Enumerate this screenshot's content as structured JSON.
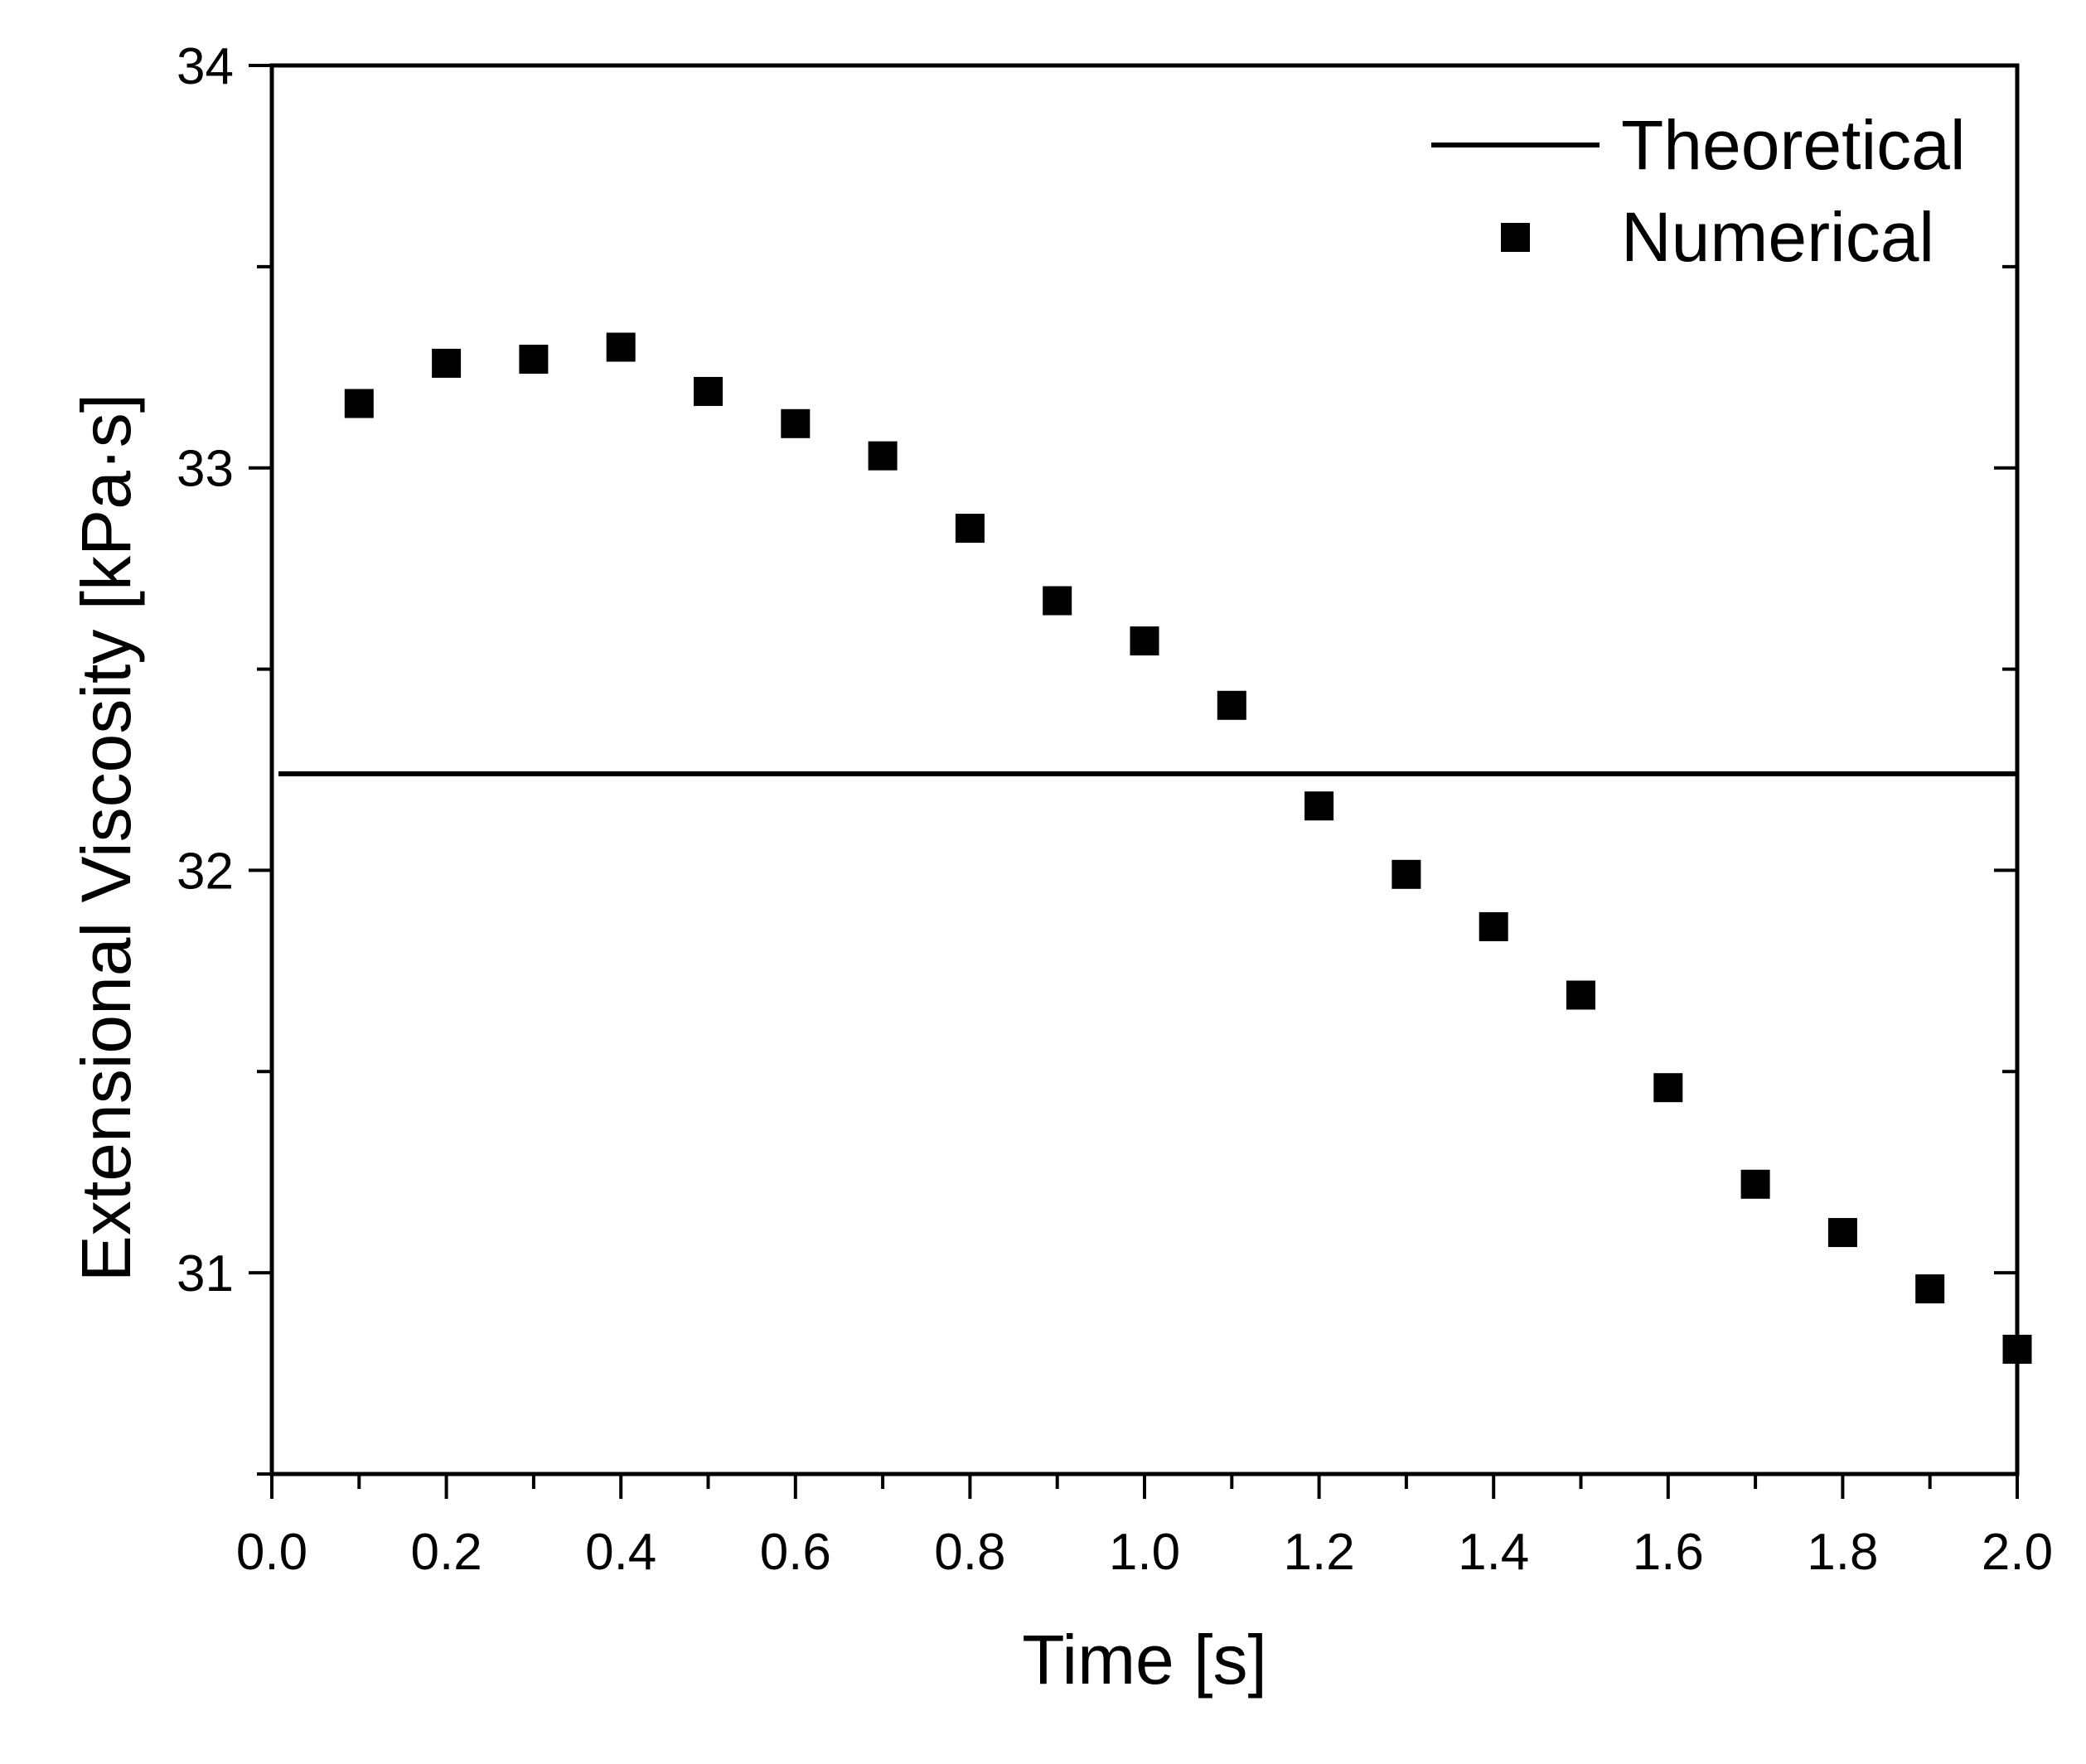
{
  "chart_data": {
    "type": "scatter",
    "title": "",
    "xlabel": "Time [s]",
    "ylabel": "Extensional Viscosity [kPa·s]",
    "xlim": [
      0.0,
      2.0
    ],
    "ylim": [
      30.5,
      34.0
    ],
    "xticks": [
      "0.0",
      "0.2",
      "0.4",
      "0.6",
      "0.8",
      "1.0",
      "1.2",
      "1.4",
      "1.6",
      "1.8",
      "2.0"
    ],
    "yticks": [
      "31",
      "32",
      "33",
      "34"
    ],
    "grid": false,
    "legend_position": "top-right",
    "series": [
      {
        "name": "Theoretical",
        "style": "line",
        "color": "#000000",
        "x": [
          0.0,
          2.0
        ],
        "y": [
          32.24,
          32.24
        ]
      },
      {
        "name": "Numerical",
        "style": "square-marker",
        "color": "#000000",
        "x": [
          0.1,
          0.2,
          0.3,
          0.4,
          0.5,
          0.6,
          0.7,
          0.8,
          0.9,
          1.0,
          1.1,
          1.2,
          1.3,
          1.4,
          1.5,
          1.6,
          1.7,
          1.8,
          1.9,
          2.0
        ],
        "y": [
          33.16,
          33.26,
          33.27,
          33.3,
          33.19,
          33.11,
          33.03,
          32.85,
          32.67,
          32.57,
          32.41,
          32.16,
          31.99,
          31.86,
          31.69,
          31.46,
          31.22,
          31.1,
          30.96,
          30.81
        ]
      }
    ]
  }
}
